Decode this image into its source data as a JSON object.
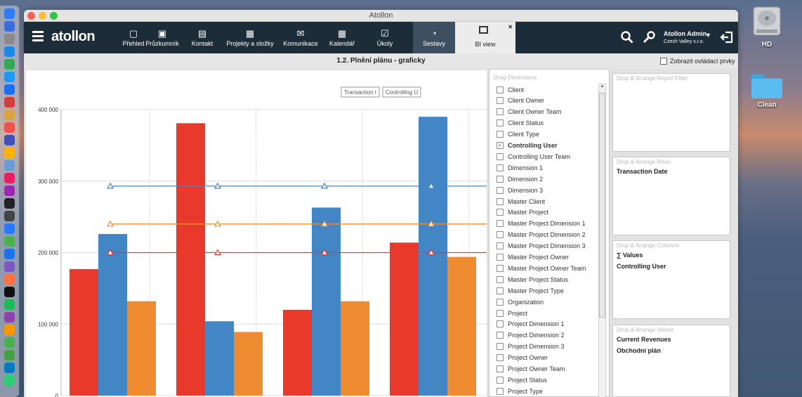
{
  "window_title": "Atollon",
  "brand": "atollon",
  "nav_items": [
    {
      "label": "Přehled",
      "icon": "overview-icon"
    },
    {
      "label": "Průzkumník",
      "icon": "explorer-icon"
    },
    {
      "label": "Kontakt",
      "icon": "contact-icon"
    },
    {
      "label": "Projekty a složky",
      "icon": "projects-icon"
    },
    {
      "label": "Komunikace",
      "icon": "mail-icon"
    },
    {
      "label": "Kalendář",
      "icon": "calendar-icon"
    },
    {
      "label": "Úkoly",
      "icon": "tasks-icon"
    },
    {
      "label": "Sestavy",
      "icon": "reports-icon"
    }
  ],
  "active_tab": {
    "label": "BI view",
    "close": "✕"
  },
  "user": {
    "name": "Atollon Admin",
    "company": "Czech Valley s.r.o."
  },
  "subheader": {
    "title": "1.2. Plnění plánu - graficky",
    "toggle_label": "Zobrazit ovládací prvky"
  },
  "chart_data": {
    "type": "bar",
    "legend": [
      "Transaction I",
      "Controlling U"
    ],
    "yticks": [
      "400 000",
      "300 000",
      "200 000",
      "100 000",
      "0"
    ],
    "ylim": [
      0,
      400000
    ],
    "groups": 4,
    "series": [
      {
        "color": "#e8392c",
        "values": [
          177000,
          381000,
          120000,
          214000
        ]
      },
      {
        "color": "#4386c6",
        "values": [
          226000,
          104000,
          263000,
          390000
        ]
      },
      {
        "color": "#ef8b30",
        "values": [
          132000,
          89000,
          132000,
          194000
        ]
      }
    ],
    "lines": [
      {
        "color": "#4386c6",
        "value": 293000
      },
      {
        "color": "#ef8b30",
        "value": 240000
      },
      {
        "color": "#e8392c",
        "value": 200000
      }
    ]
  },
  "dimensions_label": "Drag Dimensions",
  "dimensions": [
    "Client",
    "Client Owner",
    "Client Owner Team",
    "Client Status",
    "Client Type",
    "Controlling User",
    "Controlling User Team",
    "Dimension 1",
    "Dimension 2",
    "Dimension 3",
    "Master Client",
    "Master Project",
    "Master Project Dimension 1",
    "Master Project Dimension 2",
    "Master Project Dimension 3",
    "Master Project Owner",
    "Master Project Owner Team",
    "Master Project Status",
    "Master Project Type",
    "Organization",
    "Project",
    "Project Dimension 1",
    "Project Dimension 2",
    "Project Dimension 3",
    "Project Owner",
    "Project Owner Team",
    "Project Status",
    "Project Type"
  ],
  "checked_dimension": "Controlling User",
  "zones": {
    "filter": {
      "label": "Drop & Arrange Report Filter",
      "items": []
    },
    "rows": {
      "label": "Drop & Arrange Rows",
      "items": [
        "Transaction Date"
      ]
    },
    "columns": {
      "label": "Drop & Arrange Columns",
      "items": [
        "∑ Values",
        "Controlling User"
      ]
    },
    "values": {
      "label": "Drop & Arrange Values",
      "items": [
        "Current Revenues",
        "Obchodní plán"
      ]
    }
  },
  "desktop": [
    {
      "label": "HD"
    },
    {
      "label": "Clean"
    }
  ]
}
